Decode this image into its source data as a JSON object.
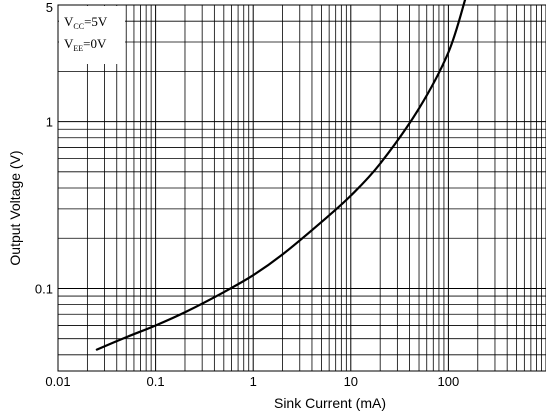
{
  "chart_data": {
    "type": "line",
    "xscale": "log",
    "yscale": "log",
    "xlim": [
      0.01,
      1000
    ],
    "ylim": [
      0.032,
      5
    ],
    "xlabel": "Sink Current (mA)",
    "ylabel": "Output Voltage (V)",
    "grid": true,
    "x_ticks": [
      0.01,
      0.1,
      1,
      10,
      100
    ],
    "x_tick_labels": [
      "0.01",
      "0.1",
      "1",
      "10",
      "100"
    ],
    "y_ticks": [
      0.1,
      1,
      5
    ],
    "y_tick_labels": [
      "0.1",
      "1",
      "5"
    ],
    "legend": {
      "placement": "top-left",
      "lines": [
        {
          "symbol": "V",
          "sub": "CC",
          "value": "=5V"
        },
        {
          "symbol": "V",
          "sub": "EE",
          "value": "=0V"
        }
      ]
    },
    "series": [
      {
        "x": [
          0.025,
          0.05,
          0.1,
          0.2,
          0.5,
          1,
          2,
          5,
          10,
          20,
          50,
          100,
          150
        ],
        "y": [
          0.043,
          0.051,
          0.06,
          0.072,
          0.095,
          0.12,
          0.16,
          0.25,
          0.36,
          0.56,
          1.2,
          2.6,
          5.5
        ]
      }
    ],
    "colors": {
      "line": "#000000",
      "grid": "#000000",
      "background": "#ffffff"
    }
  }
}
